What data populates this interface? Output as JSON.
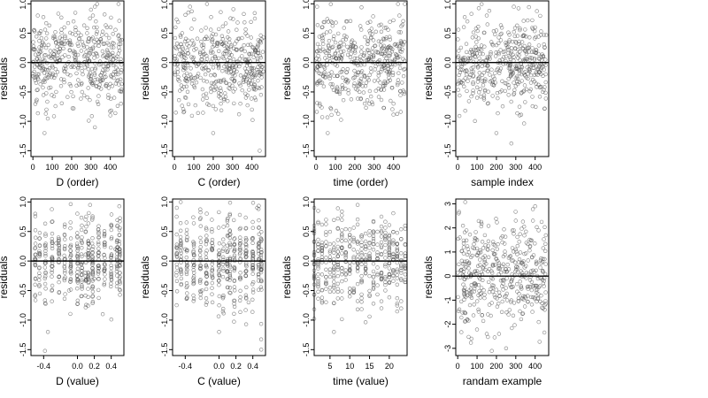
{
  "colors": {
    "points": "#555555",
    "frame": "#000000",
    "zero_line": "#000000",
    "background": "#ffffff"
  },
  "chart_data": [
    {
      "type": "scatter",
      "id": "p1",
      "title": "",
      "xlabel": "D (order)",
      "ylabel": "residuals",
      "xlim": [
        -10,
        470
      ],
      "ylim": [
        -1.6,
        1.05
      ],
      "xticks": [
        0,
        100,
        200,
        300,
        400
      ],
      "xtick_labels": [
        "0",
        "100",
        "200",
        "300",
        "400"
      ],
      "yticks": [
        -1.5,
        -1.0,
        -0.5,
        0.0,
        0.5,
        1.0
      ],
      "ytick_labels": [
        "-1.5",
        "-1.0",
        "-0.5",
        "0.0",
        "0.5",
        "1.0"
      ],
      "reference_line_y": 0,
      "marker": "open-circle",
      "n_points": 450,
      "x": [
        5,
        12,
        25,
        40,
        60,
        80,
        100,
        120,
        150,
        180,
        200,
        220,
        250,
        280,
        300,
        320,
        350,
        380,
        400,
        420,
        440,
        455,
        30,
        70,
        110,
        160,
        210,
        260,
        310,
        330,
        360,
        390,
        410,
        430
      ],
      "y": [
        0.55,
        -0.3,
        0.8,
        -0.05,
        -1.2,
        0.3,
        0.1,
        -0.5,
        0.4,
        -0.2,
        0.3,
        0.6,
        0.2,
        0.5,
        0.9,
        0.95,
        0.4,
        -0.4,
        -0.9,
        -0.6,
        -0.3,
        -0.7,
        0.1,
        -0.8,
        0.2,
        -0.1,
        0.7,
        0.3,
        0.8,
        0.6,
        -0.3,
        -0.6,
        -0.4,
        -0.2
      ]
    },
    {
      "type": "scatter",
      "id": "p2",
      "title": "",
      "xlabel": "C (order)",
      "ylabel": "residuals",
      "xlim": [
        -10,
        470
      ],
      "ylim": [
        -1.6,
        1.05
      ],
      "xticks": [
        0,
        100,
        200,
        300,
        400
      ],
      "xtick_labels": [
        "0",
        "100",
        "200",
        "300",
        "400"
      ],
      "yticks": [
        -1.5,
        -1.0,
        -0.5,
        0.0,
        0.5,
        1.0
      ],
      "ytick_labels": [
        "-1.5",
        "-1.0",
        "-0.5",
        "0.0",
        "0.5",
        "1.0"
      ],
      "reference_line_y": 0,
      "marker": "open-circle",
      "n_points": 450,
      "x": [
        5,
        40,
        80,
        100,
        150,
        200,
        210,
        250,
        300,
        340,
        380,
        400,
        420,
        440,
        450
      ],
      "y": [
        0.6,
        0.5,
        0.95,
        -0.4,
        0.3,
        -1.2,
        0.1,
        0.4,
        -0.2,
        -0.7,
        0.3,
        -0.8,
        0.2,
        -1.5,
        0.4
      ]
    },
    {
      "type": "scatter",
      "id": "p3",
      "title": "",
      "xlabel": "time (order)",
      "ylabel": "residuals",
      "xlim": [
        -10,
        470
      ],
      "ylim": [
        -1.6,
        1.05
      ],
      "xticks": [
        0,
        100,
        200,
        300,
        400
      ],
      "xtick_labels": [
        "0",
        "100",
        "200",
        "300",
        "400"
      ],
      "yticks": [
        -1.5,
        -1.0,
        -0.5,
        0.0,
        0.5,
        1.0
      ],
      "ytick_labels": [
        "-1.5",
        "-1.0",
        "-0.5",
        "0.0",
        "0.5",
        "1.0"
      ],
      "reference_line_y": 0,
      "marker": "open-circle",
      "n_points": 450,
      "x": [
        5,
        30,
        60,
        90,
        120,
        160,
        200,
        240,
        280,
        320,
        360,
        400,
        430,
        455
      ],
      "y": [
        0.95,
        0.6,
        -1.2,
        0.4,
        -0.5,
        0.7,
        0.2,
        -0.4,
        0.5,
        -0.3,
        0.4,
        -0.7,
        0.8,
        -0.5
      ]
    },
    {
      "type": "scatter",
      "id": "p4",
      "title": "",
      "xlabel": "sample index",
      "ylabel": "residuals",
      "xlim": [
        -10,
        470
      ],
      "ylim": [
        -1.6,
        1.05
      ],
      "xticks": [
        0,
        100,
        200,
        300,
        400
      ],
      "xtick_labels": [
        "0",
        "100",
        "200",
        "300",
        "400"
      ],
      "yticks": [
        -1.5,
        -1.0,
        -0.5,
        0.0,
        0.5,
        1.0
      ],
      "ytick_labels": [
        "-1.5",
        "-1.0",
        "-0.5",
        "0.0",
        "0.5",
        "1.0"
      ],
      "reference_line_y": 0,
      "marker": "open-circle",
      "n_points": 450,
      "x": [
        5,
        50,
        100,
        150,
        200,
        250,
        290,
        300,
        320,
        350,
        400,
        440,
        455
      ],
      "y": [
        0.2,
        0.7,
        -0.6,
        0.8,
        -1.2,
        0.3,
        0.95,
        -0.4,
        -0.9,
        0.2,
        0.6,
        -0.5,
        -0.2
      ]
    },
    {
      "type": "scatter",
      "id": "p5",
      "title": "",
      "xlabel": "D (value)",
      "ylabel": "residuals",
      "xlim": [
        -0.55,
        0.55
      ],
      "ylim": [
        -1.6,
        1.05
      ],
      "xticks": [
        -0.4,
        0.0,
        0.2,
        0.4
      ],
      "xtick_labels": [
        "-0.4",
        "0.0",
        "0.2",
        "0.4"
      ],
      "yticks": [
        -1.5,
        -1.0,
        -0.5,
        0.0,
        0.5,
        1.0
      ],
      "ytick_labels": [
        "-1.5",
        "-1.0",
        "-0.5",
        "0.0",
        "0.5",
        "1.0"
      ],
      "reference_line_y": 0,
      "marker": "open-circle",
      "n_points": 450,
      "x": [
        -0.5,
        -0.35,
        -0.25,
        -0.1,
        0.0,
        0.1,
        0.15,
        0.2,
        0.3,
        0.45
      ],
      "y": [
        0.8,
        -1.2,
        0.3,
        -0.5,
        0.4,
        0.5,
        0.95,
        -0.3,
        -0.9,
        0.2
      ]
    },
    {
      "type": "scatter",
      "id": "p6",
      "title": "",
      "xlabel": "C (value)",
      "ylabel": "residuals",
      "xlim": [
        -0.55,
        0.55
      ],
      "ylim": [
        -1.6,
        1.05
      ],
      "xticks": [
        -0.4,
        0.0,
        0.2,
        0.4
      ],
      "xtick_labels": [
        "-0.4",
        "0.0",
        "0.2",
        "0.4"
      ],
      "yticks": [
        -1.5,
        -1.0,
        -0.5,
        0.0,
        0.5,
        1.0
      ],
      "ytick_labels": [
        "-1.5",
        "-1.0",
        "-0.5",
        "0.0",
        "0.5",
        "1.0"
      ],
      "reference_line_y": 0,
      "marker": "open-circle",
      "n_points": 450,
      "x": [
        -0.5,
        -0.4,
        -0.2,
        0.0,
        0.1,
        0.25,
        0.35,
        0.45,
        0.5
      ],
      "y": [
        0.9,
        0.2,
        -0.5,
        -1.2,
        0.6,
        0.3,
        -0.7,
        0.9,
        -1.5
      ]
    },
    {
      "type": "scatter",
      "id": "p7",
      "title": "",
      "xlabel": "time (value)",
      "ylabel": "residuals",
      "xlim": [
        1,
        24.5
      ],
      "ylim": [
        -1.6,
        1.05
      ],
      "xticks": [
        5,
        10,
        15,
        20
      ],
      "xtick_labels": [
        "5",
        "10",
        "15",
        "20"
      ],
      "yticks": [
        -1.5,
        -1.0,
        -0.5,
        0.0,
        0.5,
        1.0
      ],
      "ytick_labels": [
        "-1.5",
        "-1.0",
        "-0.5",
        "0.0",
        "0.5",
        "1.0"
      ],
      "reference_line_y": 0,
      "marker": "open-circle",
      "n_points": 450,
      "x": [
        1,
        2,
        4,
        6,
        8,
        10,
        12,
        14,
        16,
        18,
        20,
        22,
        24
      ],
      "y": [
        0.9,
        -0.3,
        0.7,
        -1.2,
        0.4,
        -0.6,
        0.95,
        -0.2,
        0.5,
        -0.8,
        0.3,
        -0.4,
        0.6
      ]
    },
    {
      "type": "scatter",
      "id": "p8",
      "title": "",
      "xlabel": "randam example",
      "ylabel": "residuals",
      "xlim": [
        -10,
        470
      ],
      "ylim": [
        -3.3,
        3.2
      ],
      "xticks": [
        0,
        100,
        200,
        300,
        400
      ],
      "xtick_labels": [
        "0",
        "100",
        "200",
        "300",
        "400"
      ],
      "yticks": [
        -3,
        -2,
        -1,
        0,
        1,
        2,
        3
      ],
      "ytick_labels": [
        "-3",
        "-2",
        "-1",
        "0",
        "1",
        "2",
        "3"
      ],
      "reference_line_y": 0,
      "marker": "open-circle",
      "n_points": 450,
      "x": [
        5,
        50,
        100,
        150,
        200,
        250,
        300,
        350,
        400,
        450
      ],
      "y": [
        2.6,
        -1.8,
        1.5,
        -2.4,
        0.7,
        -3.0,
        2.3,
        -0.9,
        2.9,
        -1.4
      ]
    }
  ]
}
